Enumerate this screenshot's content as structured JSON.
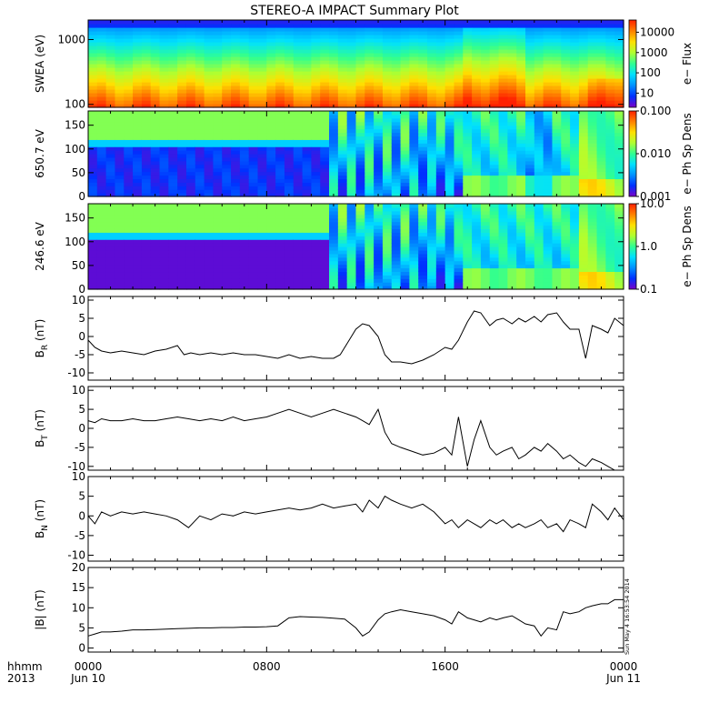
{
  "title": "STEREO-A IMPACT Summary Plot",
  "colors": {
    "line": "#000000",
    "colormap": [
      "#7a00c8",
      "#0030ff",
      "#0090ff",
      "#00e0ff",
      "#30ff90",
      "#b0ff30",
      "#ffe000",
      "#ff8000",
      "#ff2000"
    ]
  },
  "footer": {
    "hhmm_label": "hhmm",
    "year_label": "2013",
    "timestamp": "Sun May  4 16:53:54 2014"
  },
  "chart_data": {
    "type": "multi-panel",
    "x_range_hours": [
      0,
      24
    ],
    "x_ticks": [
      {
        "hour": 0,
        "label": "0000",
        "sublabel": "Jun 10"
      },
      {
        "hour": 8,
        "label": "0800",
        "sublabel": ""
      },
      {
        "hour": 16,
        "label": "1600",
        "sublabel": ""
      },
      {
        "hour": 24,
        "label": "0000",
        "sublabel": "Jun 11"
      }
    ],
    "panels": [
      {
        "id": "swea",
        "type": "heatmap",
        "ylabel": "SWEA (eV)",
        "yscale": "log",
        "ylim": [
          90,
          2000
        ],
        "yticks": [
          {
            "value": 1000,
            "label": "1000"
          },
          {
            "value": 100,
            "label": "100"
          }
        ],
        "colorbar": {
          "label": "e− Flux",
          "scale": "log",
          "range": [
            2,
            40000
          ],
          "ticks": [
            {
              "value": 10000,
              "label": "10000"
            },
            {
              "value": 1000,
              "label": "1000"
            },
            {
              "value": 100,
              "label": "100"
            },
            {
              "value": 10,
              "label": "10"
            }
          ]
        }
      },
      {
        "id": "pad650",
        "type": "heatmap",
        "ylabel": "650.7 eV",
        "yscale": "linear",
        "ylim": [
          0,
          180
        ],
        "yticks": [
          {
            "value": 150,
            "label": "150"
          },
          {
            "value": 100,
            "label": "100"
          },
          {
            "value": 50,
            "label": "50"
          },
          {
            "value": 0,
            "label": "0"
          }
        ],
        "colorbar": {
          "label": "e− Ph Sp Dens",
          "scale": "log",
          "range": [
            0.001,
            0.1
          ],
          "ticks": [
            {
              "value": 0.1,
              "label": "0.100"
            },
            {
              "value": 0.01,
              "label": "0.010"
            },
            {
              "value": 0.001,
              "label": "0.001"
            }
          ]
        }
      },
      {
        "id": "pad246",
        "type": "heatmap",
        "ylabel": "246.6 eV",
        "yscale": "linear",
        "ylim": [
          0,
          180
        ],
        "yticks": [
          {
            "value": 150,
            "label": "150"
          },
          {
            "value": 100,
            "label": "100"
          },
          {
            "value": 50,
            "label": "50"
          },
          {
            "value": 0,
            "label": "0"
          }
        ],
        "colorbar": {
          "label": "e− Ph Sp Dens",
          "scale": "log",
          "range": [
            0.1,
            10
          ],
          "ticks": [
            {
              "value": 10,
              "label": "10.0"
            },
            {
              "value": 1,
              "label": "1.0"
            },
            {
              "value": 0.1,
              "label": "0.1"
            }
          ]
        }
      },
      {
        "id": "br",
        "type": "line",
        "ylabel": "B",
        "ysub": "R",
        "yunit": " (nT)",
        "ylim": [
          -12,
          11
        ],
        "yticks": [
          {
            "value": 10,
            "label": "10"
          },
          {
            "value": 5,
            "label": "5"
          },
          {
            "value": 0,
            "label": "0"
          },
          {
            "value": -5,
            "label": "-5"
          },
          {
            "value": -10,
            "label": "-10"
          }
        ],
        "x": [
          0,
          0.3,
          0.6,
          1,
          1.5,
          2,
          2.5,
          3,
          3.5,
          4,
          4.3,
          4.6,
          5,
          5.5,
          6,
          6.5,
          7,
          7.5,
          8,
          8.5,
          9,
          9.5,
          10,
          10.5,
          11,
          11.3,
          11.6,
          12,
          12.3,
          12.6,
          13,
          13.3,
          13.6,
          14,
          14.5,
          15,
          15.5,
          16,
          16.3,
          16.6,
          17,
          17.3,
          17.6,
          18,
          18.3,
          18.6,
          19,
          19.3,
          19.6,
          20,
          20.3,
          20.6,
          21,
          21.3,
          21.6,
          22,
          22.3,
          22.6,
          23,
          23.3,
          23.6,
          24
        ],
        "y": [
          -1,
          -3,
          -4,
          -4.5,
          -4,
          -4.5,
          -5,
          -4,
          -3.5,
          -2.5,
          -5,
          -4.5,
          -5,
          -4.5,
          -5,
          -4.5,
          -5,
          -5,
          -5.5,
          -6,
          -5,
          -6,
          -5.5,
          -6,
          -6,
          -5,
          -2,
          2,
          3.5,
          3,
          0,
          -5,
          -7,
          -7,
          -7.5,
          -6.5,
          -5,
          -3,
          -3.5,
          -1,
          4,
          7,
          6.5,
          3,
          4.5,
          5,
          3.5,
          5,
          4,
          5.5,
          4,
          6,
          6.5,
          4,
          2,
          2,
          -6,
          3,
          2,
          1,
          5,
          3
        ]
      },
      {
        "id": "bt",
        "type": "line",
        "ylabel": "B",
        "ysub": "T",
        "yunit": " (nT)",
        "ylim": [
          -11,
          11
        ],
        "yticks": [
          {
            "value": 10,
            "label": "10"
          },
          {
            "value": 5,
            "label": "5"
          },
          {
            "value": 0,
            "label": "0"
          },
          {
            "value": -5,
            "label": "-5"
          },
          {
            "value": -10,
            "label": "-10"
          }
        ],
        "x": [
          0,
          0.3,
          0.6,
          1,
          1.5,
          2,
          2.5,
          3,
          3.5,
          4,
          4.5,
          5,
          5.5,
          6,
          6.5,
          7,
          7.5,
          8,
          8.5,
          9,
          9.5,
          10,
          10.5,
          11,
          11.5,
          12,
          12.3,
          12.6,
          13,
          13.3,
          13.6,
          14,
          14.5,
          15,
          15.5,
          16,
          16.3,
          16.6,
          17,
          17.3,
          17.6,
          18,
          18.3,
          18.6,
          19,
          19.3,
          19.6,
          20,
          20.3,
          20.6,
          21,
          21.3,
          21.6,
          22,
          22.3,
          22.6,
          23,
          23.3,
          23.6,
          24
        ],
        "y": [
          2,
          1.5,
          2.5,
          2,
          2,
          2.5,
          2,
          2,
          2.5,
          3,
          2.5,
          2,
          2.5,
          2,
          3,
          2,
          2.5,
          3,
          4,
          5,
          4,
          3,
          4,
          5,
          4,
          3,
          2,
          1,
          5,
          -1,
          -4,
          -5,
          -6,
          -7,
          -6.5,
          -5,
          -7,
          3,
          -10,
          -3,
          2,
          -5,
          -7,
          -6,
          -5,
          -8,
          -7,
          -5,
          -6,
          -4,
          -6,
          -8,
          -7,
          -9,
          -10,
          -8,
          -9,
          -10,
          -11,
          -11
        ]
      },
      {
        "id": "bn",
        "type": "line",
        "ylabel": "B",
        "ysub": "N",
        "yunit": " (nT)",
        "ylim": [
          -11.5,
          10
        ],
        "yticks": [
          {
            "value": 10,
            "label": "10"
          },
          {
            "value": 5,
            "label": "5"
          },
          {
            "value": 0,
            "label": "0"
          },
          {
            "value": -5,
            "label": "-5"
          },
          {
            "value": -10,
            "label": "-10"
          }
        ],
        "x": [
          0,
          0.3,
          0.6,
          1,
          1.5,
          2,
          2.5,
          3,
          3.5,
          4,
          4.5,
          5,
          5.5,
          6,
          6.5,
          7,
          7.5,
          8,
          8.5,
          9,
          9.5,
          10,
          10.5,
          11,
          11.5,
          12,
          12.3,
          12.6,
          13,
          13.3,
          13.6,
          14,
          14.5,
          15,
          15.5,
          16,
          16.3,
          16.6,
          17,
          17.3,
          17.6,
          18,
          18.3,
          18.6,
          19,
          19.3,
          19.6,
          20,
          20.3,
          20.6,
          21,
          21.3,
          21.6,
          22,
          22.3,
          22.6,
          23,
          23.3,
          23.6,
          24
        ],
        "y": [
          0,
          -2,
          1,
          0,
          1,
          0.5,
          1,
          0.5,
          0,
          -1,
          -3,
          0,
          -1,
          0.5,
          0,
          1,
          0.5,
          1,
          1.5,
          2,
          1.5,
          2,
          3,
          2,
          2.5,
          3,
          1,
          4,
          2,
          5,
          4,
          3,
          2,
          3,
          1,
          -2,
          -1,
          -3,
          -1,
          -2,
          -3,
          -1,
          -2,
          -1,
          -3,
          -2,
          -3,
          -2,
          -1,
          -3,
          -2,
          -4,
          -1,
          -2,
          -3,
          3,
          1,
          -1,
          2,
          -1
        ]
      },
      {
        "id": "bmag",
        "type": "line",
        "ylabel": "|B| (nT)",
        "ylim": [
          -1,
          20
        ],
        "yticks": [
          {
            "value": 20,
            "label": "20"
          },
          {
            "value": 15,
            "label": "15"
          },
          {
            "value": 10,
            "label": "10"
          },
          {
            "value": 5,
            "label": "5"
          },
          {
            "value": 0,
            "label": "0"
          }
        ],
        "x": [
          0,
          0.3,
          0.6,
          1,
          1.5,
          2,
          2.5,
          3,
          3.5,
          4,
          4.5,
          5,
          5.5,
          6,
          6.5,
          7,
          7.5,
          8,
          8.5,
          9,
          9.5,
          10,
          10.5,
          11,
          11.5,
          12,
          12.3,
          12.6,
          13,
          13.3,
          13.6,
          14,
          14.5,
          15,
          15.5,
          16,
          16.3,
          16.6,
          17,
          17.3,
          17.6,
          18,
          18.3,
          18.6,
          19,
          19.3,
          19.6,
          20,
          20.3,
          20.6,
          21,
          21.3,
          21.6,
          22,
          22.3,
          22.6,
          23,
          23.3,
          23.6,
          24
        ],
        "y": [
          3,
          3.5,
          4,
          4,
          4.2,
          4.5,
          4.5,
          4.6,
          4.7,
          4.8,
          4.9,
          5,
          5,
          5.1,
          5.1,
          5.2,
          5.2,
          5.3,
          5.5,
          7.5,
          7.8,
          7.7,
          7.6,
          7.4,
          7.2,
          5,
          3,
          4,
          7,
          8.5,
          9,
          9.5,
          9,
          8.5,
          8,
          7,
          6,
          9,
          7.5,
          7,
          6.5,
          7.5,
          7,
          7.5,
          8,
          7,
          6,
          5.5,
          3,
          5,
          4.5,
          9,
          8.5,
          9,
          10,
          10.5,
          11,
          11,
          12,
          12
        ]
      }
    ]
  }
}
